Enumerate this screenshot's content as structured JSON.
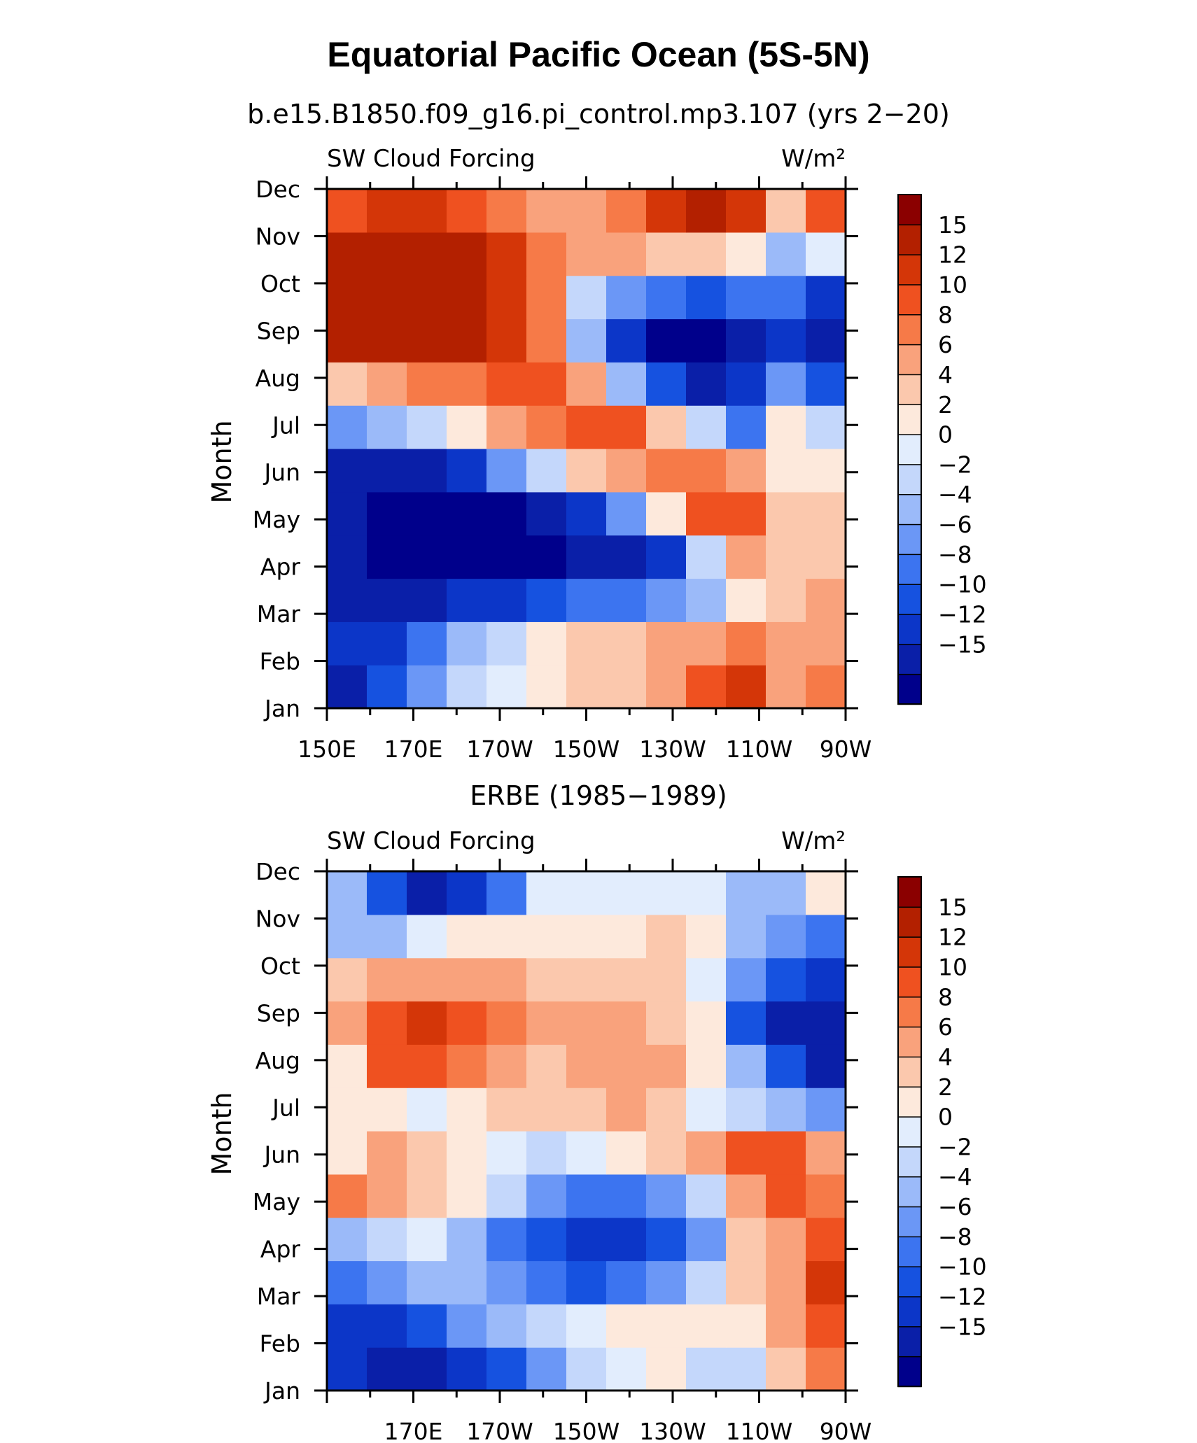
{
  "title": "Equatorial Pacific Ocean (5S-5N)",
  "colors": [
    "#00008b",
    "#0a1fa8",
    "#0c36c8",
    "#1652e0",
    "#3c74f0",
    "#6b97f6",
    "#9bbaf9",
    "#c4d7fb",
    "#e2edfd",
    "#fde9dc",
    "#fbc8ad",
    "#f9a27c",
    "#f67a48",
    "#ef5120",
    "#d43608",
    "#b32000",
    "#8b0000"
  ],
  "colorbar_labels": [
    "15",
    "12",
    "10",
    "8",
    "6",
    "4",
    "2",
    "0",
    "−2",
    "−4",
    "−6",
    "−8",
    "−10",
    "−12",
    "−15"
  ],
  "chart_data": [
    {
      "type": "heatmap",
      "subtitle": "b.e15.B1850.f09_g16.pi_control.mp3.107 (yrs 2−20)",
      "left_label": "SW Cloud Forcing",
      "right_label": "W/m²",
      "ylabel": "Month",
      "x_ticks": [
        "150E",
        "170E",
        "170W",
        "150W",
        "130W",
        "110W",
        "90W"
      ],
      "y_ticks": [
        "Jan",
        "Feb",
        "Mar",
        "Apr",
        "May",
        "Jun",
        "Jul",
        "Aug",
        "Sep",
        "Oct",
        "Nov",
        "Dec"
      ],
      "x_columns": [
        "150E",
        "160E",
        "170E",
        "180",
        "170W",
        "160W",
        "150W",
        "140W",
        "130W",
        "120W",
        "110W",
        "100W",
        "90W"
      ],
      "values": [
        [
          -13,
          -10,
          -6,
          -2,
          1,
          3,
          4,
          5,
          6,
          10,
          13,
          6,
          9
        ],
        [
          -12,
          -11,
          -8,
          -4,
          -1,
          2,
          4,
          5,
          6,
          7,
          8,
          7,
          7
        ],
        [
          -13,
          -14,
          -13,
          -12,
          -11,
          -9,
          -8,
          -7,
          -6,
          -4,
          2,
          5,
          6
        ],
        [
          -14,
          -17,
          -17,
          -17,
          -17,
          -16,
          -15,
          -13,
          -11,
          -2,
          6,
          5,
          5
        ],
        [
          -14,
          -17,
          -17,
          -17,
          -16,
          -14,
          -11,
          -6,
          2,
          11,
          10,
          4,
          4
        ],
        [
          -13,
          -14,
          -13,
          -11,
          -6,
          -1,
          4,
          7,
          8,
          9,
          6,
          2,
          3
        ],
        [
          -6,
          -4,
          -2,
          2,
          6,
          8,
          10,
          10,
          5,
          -2,
          -8,
          2,
          -1
        ],
        [
          4,
          6,
          8,
          9,
          10,
          10,
          7,
          -3,
          -10,
          -13,
          -12,
          -5,
          -10
        ],
        [
          17,
          17,
          17,
          16,
          13,
          8,
          -4,
          -11,
          -16,
          -17,
          -15,
          -12,
          -15
        ],
        [
          17,
          17,
          17,
          16,
          12,
          8,
          -2,
          -6,
          -8,
          -9,
          -8,
          -8,
          -12
        ],
        [
          16,
          17,
          17,
          16,
          12,
          8,
          6,
          6,
          5,
          4,
          2,
          -3,
          0
        ],
        [
          10,
          12,
          12,
          11,
          9,
          6,
          6,
          8,
          12,
          15,
          13,
          4,
          10
        ]
      ]
    },
    {
      "type": "heatmap",
      "subtitle": "ERBE (1985−1989)",
      "left_label": "SW Cloud Forcing",
      "right_label": "W/m²",
      "ylabel": "Month",
      "x_ticks": [
        "170E",
        "170W",
        "150W",
        "130W",
        "110W",
        "90W"
      ],
      "y_ticks": [
        "Jan",
        "Feb",
        "Mar",
        "Apr",
        "May",
        "Jun",
        "Jul",
        "Aug",
        "Sep",
        "Oct",
        "Nov",
        "Dec"
      ],
      "x_columns": [
        "150E",
        "160E",
        "170E",
        "180",
        "170W",
        "160W",
        "150W",
        "140W",
        "130W",
        "120W",
        "110W",
        "100W",
        "90W"
      ],
      "values": [
        [
          -12,
          -13,
          -13,
          -12,
          -10,
          -6,
          -1,
          1,
          2,
          -1,
          -2,
          4,
          8
        ],
        [
          -12,
          -11,
          -9,
          -6,
          -3,
          -1,
          1,
          2,
          3,
          3,
          3,
          6,
          11
        ],
        [
          -8,
          -6,
          -4,
          -3,
          -5,
          -7,
          -9,
          -8,
          -6,
          -1,
          4,
          7,
          13
        ],
        [
          -4,
          -2,
          0,
          -3,
          -8,
          -9,
          -11,
          -12,
          -10,
          -6,
          5,
          7,
          10
        ],
        [
          8,
          7,
          5,
          2,
          -2,
          -5,
          -7,
          -8,
          -6,
          -1,
          7,
          10,
          9
        ],
        [
          3,
          6,
          4,
          3,
          1,
          -1,
          0,
          2,
          4,
          7,
          11,
          10,
          7
        ],
        [
          3,
          2,
          1,
          3,
          4,
          4,
          5,
          6,
          4,
          1,
          -1,
          -3,
          -6
        ],
        [
          3,
          10,
          10,
          8,
          6,
          5,
          6,
          7,
          6,
          2,
          -4,
          -10,
          -14
        ],
        [
          7,
          11,
          12,
          10,
          8,
          6,
          6,
          6,
          5,
          2,
          -9,
          -14,
          -15
        ],
        [
          4,
          6,
          7,
          7,
          6,
          5,
          5,
          5,
          4,
          1,
          -6,
          -10,
          -12
        ],
        [
          -3,
          -3,
          0,
          2,
          3,
          3,
          3,
          3,
          4,
          2,
          -3,
          -6,
          -8
        ],
        [
          -4,
          -9,
          -13,
          -12,
          -8,
          0,
          1,
          1,
          1,
          0,
          -3,
          -4,
          2
        ]
      ]
    }
  ]
}
